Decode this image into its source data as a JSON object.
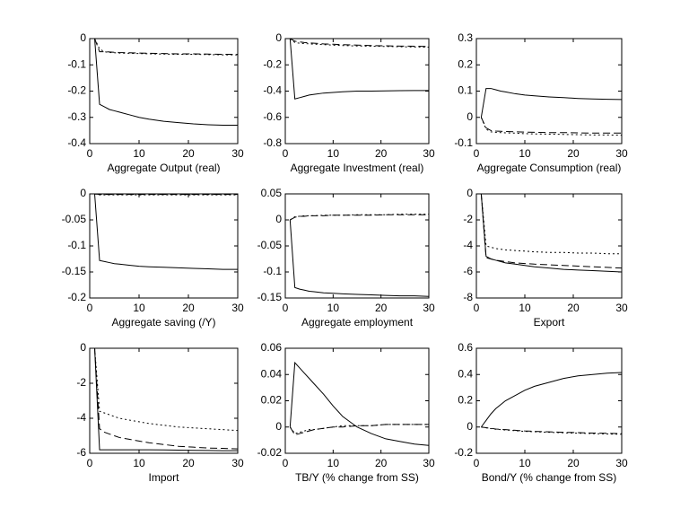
{
  "chart_data": [
    {
      "type": "line",
      "xlabel": "Aggregate Output (real)",
      "x": [
        1,
        2,
        3,
        4,
        5,
        6,
        8,
        10,
        12,
        15,
        18,
        21,
        24,
        27,
        30
      ],
      "xlim": [
        0,
        30
      ],
      "xticks": [
        0,
        10,
        20,
        30
      ],
      "ylim": [
        -0.4,
        0
      ],
      "yticks": [
        -0.4,
        -0.3,
        -0.2,
        -0.1,
        0
      ],
      "series": [
        {
          "color": "#000000",
          "dash": "solid",
          "values": [
            0,
            -0.25,
            -0.26,
            -0.27,
            -0.275,
            -0.28,
            -0.29,
            -0.3,
            -0.307,
            -0.315,
            -0.32,
            -0.325,
            -0.328,
            -0.33,
            -0.33
          ]
        },
        {
          "color": "#000000",
          "dash": "dashed",
          "values": [
            0,
            -0.05,
            -0.05,
            -0.051,
            -0.052,
            -0.053,
            -0.054,
            -0.055,
            -0.056,
            -0.057,
            -0.058,
            -0.058,
            -0.059,
            -0.06,
            -0.06
          ]
        },
        {
          "color": "#000000",
          "dash": "dotted",
          "values": [
            0,
            -0.04,
            -0.05,
            -0.053,
            -0.054,
            -0.055,
            -0.056,
            -0.057,
            -0.058,
            -0.059,
            -0.06,
            -0.06,
            -0.061,
            -0.062,
            -0.062
          ]
        }
      ]
    },
    {
      "type": "line",
      "xlabel": "Aggregate Investment (real)",
      "x": [
        1,
        2,
        3,
        4,
        5,
        6,
        8,
        10,
        12,
        15,
        18,
        21,
        24,
        27,
        30
      ],
      "xlim": [
        0,
        30
      ],
      "xticks": [
        0,
        10,
        20,
        30
      ],
      "ylim": [
        -0.8,
        0
      ],
      "yticks": [
        -0.8,
        -0.6,
        -0.4,
        -0.2,
        0
      ],
      "series": [
        {
          "color": "#000000",
          "dash": "solid",
          "values": [
            0,
            -0.46,
            -0.45,
            -0.44,
            -0.43,
            -0.425,
            -0.415,
            -0.41,
            -0.405,
            -0.4,
            -0.4,
            -0.398,
            -0.397,
            -0.396,
            -0.396
          ]
        },
        {
          "color": "#000000",
          "dash": "dashed",
          "values": [
            0,
            -0.02,
            -0.025,
            -0.03,
            -0.032,
            -0.035,
            -0.04,
            -0.043,
            -0.046,
            -0.05,
            -0.053,
            -0.055,
            -0.057,
            -0.058,
            -0.06
          ]
        },
        {
          "color": "#000000",
          "dash": "dotted",
          "values": [
            0,
            -0.03,
            -0.035,
            -0.038,
            -0.04,
            -0.042,
            -0.046,
            -0.05,
            -0.053,
            -0.056,
            -0.058,
            -0.06,
            -0.062,
            -0.064,
            -0.065
          ]
        }
      ]
    },
    {
      "type": "line",
      "xlabel": "Aggregate Consumption (real)",
      "x": [
        1,
        2,
        3,
        4,
        5,
        6,
        8,
        10,
        12,
        15,
        18,
        21,
        24,
        27,
        30
      ],
      "xlim": [
        0,
        30
      ],
      "xticks": [
        0,
        10,
        20,
        30
      ],
      "ylim": [
        -0.1,
        0.3
      ],
      "yticks": [
        -0.1,
        0,
        0.1,
        0.2,
        0.3
      ],
      "series": [
        {
          "color": "#000000",
          "dash": "solid",
          "values": [
            0,
            0.11,
            0.11,
            0.105,
            0.1,
            0.097,
            0.09,
            0.085,
            0.082,
            0.078,
            0.075,
            0.072,
            0.07,
            0.069,
            0.068
          ]
        },
        {
          "color": "#000000",
          "dash": "dashed",
          "values": [
            0,
            -0.04,
            -0.05,
            -0.052,
            -0.053,
            -0.054,
            -0.055,
            -0.056,
            -0.057,
            -0.058,
            -0.058,
            -0.059,
            -0.06,
            -0.06,
            -0.06
          ]
        },
        {
          "color": "#000000",
          "dash": "dotted",
          "values": [
            0,
            -0.045,
            -0.055,
            -0.057,
            -0.058,
            -0.059,
            -0.06,
            -0.062,
            -0.063,
            -0.064,
            -0.065,
            -0.066,
            -0.067,
            -0.067,
            -0.068
          ]
        }
      ]
    },
    {
      "type": "line",
      "xlabel": "Aggregate saving (/Y)",
      "x": [
        1,
        2,
        3,
        4,
        5,
        6,
        8,
        10,
        12,
        15,
        18,
        21,
        24,
        27,
        30
      ],
      "xlim": [
        0,
        30
      ],
      "xticks": [
        0,
        10,
        20,
        30
      ],
      "ylim": [
        -0.2,
        0
      ],
      "yticks": [
        -0.2,
        -0.15,
        -0.1,
        -0.05,
        0
      ],
      "series": [
        {
          "color": "#000000",
          "dash": "solid",
          "values": [
            0,
            -0.128,
            -0.13,
            -0.132,
            -0.134,
            -0.135,
            -0.137,
            -0.139,
            -0.14,
            -0.141,
            -0.142,
            -0.143,
            -0.144,
            -0.145,
            -0.145
          ]
        },
        {
          "color": "#000000",
          "dash": "dashed",
          "values": [
            0,
            -0.001,
            -0.001,
            -0.001,
            -0.001,
            -0.001,
            -0.001,
            -0.001,
            -0.001,
            -0.001,
            -0.001,
            -0.001,
            -0.001,
            -0.001,
            -0.001
          ]
        },
        {
          "color": "#000000",
          "dash": "dotted",
          "values": [
            0,
            -0.002,
            -0.002,
            -0.002,
            -0.002,
            -0.002,
            -0.002,
            -0.002,
            -0.002,
            -0.002,
            -0.002,
            -0.002,
            -0.002,
            -0.002,
            -0.002
          ]
        }
      ]
    },
    {
      "type": "line",
      "xlabel": "Aggregate employment",
      "x": [
        1,
        2,
        3,
        4,
        5,
        6,
        8,
        10,
        12,
        15,
        18,
        21,
        24,
        27,
        30
      ],
      "xlim": [
        0,
        30
      ],
      "xticks": [
        0,
        10,
        20,
        30
      ],
      "ylim": [
        -0.15,
        0.05
      ],
      "yticks": [
        -0.15,
        -0.1,
        -0.05,
        0,
        0.05
      ],
      "series": [
        {
          "color": "#000000",
          "dash": "solid",
          "values": [
            0,
            -0.13,
            -0.133,
            -0.135,
            -0.137,
            -0.138,
            -0.14,
            -0.141,
            -0.142,
            -0.143,
            -0.144,
            -0.145,
            -0.146,
            -0.146,
            -0.147
          ]
        },
        {
          "color": "#000000",
          "dash": "dashed",
          "values": [
            0,
            0.005,
            0.007,
            0.007,
            0.008,
            0.008,
            0.008,
            0.009,
            0.009,
            0.009,
            0.009,
            0.01,
            0.01,
            0.01,
            0.01
          ]
        },
        {
          "color": "#000000",
          "dash": "dotted",
          "values": [
            0,
            0.006,
            0.007,
            0.008,
            0.008,
            0.008,
            0.009,
            0.009,
            0.009,
            0.01,
            0.01,
            0.01,
            0.011,
            0.011,
            0.011
          ]
        }
      ]
    },
    {
      "type": "line",
      "xlabel": "Export",
      "x": [
        1,
        2,
        3,
        4,
        5,
        6,
        8,
        10,
        12,
        15,
        18,
        21,
        24,
        27,
        30
      ],
      "xlim": [
        0,
        30
      ],
      "xticks": [
        0,
        10,
        20,
        30
      ],
      "ylim": [
        -8,
        0
      ],
      "yticks": [
        -8,
        -6,
        -4,
        -2,
        0
      ],
      "series": [
        {
          "color": "#000000",
          "dash": "solid",
          "values": [
            0,
            -4.8,
            -5,
            -5.1,
            -5.2,
            -5.3,
            -5.4,
            -5.5,
            -5.6,
            -5.7,
            -5.8,
            -5.85,
            -5.9,
            -5.95,
            -6
          ]
        },
        {
          "color": "#000000",
          "dash": "dashed",
          "values": [
            0,
            -4.9,
            -5,
            -5.1,
            -5.15,
            -5.2,
            -5.3,
            -5.35,
            -5.4,
            -5.45,
            -5.5,
            -5.55,
            -5.6,
            -5.65,
            -5.7
          ]
        },
        {
          "color": "#000000",
          "dash": "dotted",
          "values": [
            0,
            -4,
            -4.1,
            -4.2,
            -4.25,
            -4.3,
            -4.35,
            -4.4,
            -4.45,
            -4.5,
            -4.5,
            -4.55,
            -4.55,
            -4.6,
            -4.6
          ]
        }
      ]
    },
    {
      "type": "line",
      "xlabel": "Import",
      "x": [
        1,
        2,
        3,
        4,
        5,
        6,
        8,
        10,
        12,
        15,
        18,
        21,
        24,
        27,
        30
      ],
      "xlim": [
        0,
        30
      ],
      "xticks": [
        0,
        10,
        20,
        30
      ],
      "ylim": [
        -6,
        0
      ],
      "yticks": [
        -6,
        -4,
        -2,
        0
      ],
      "series": [
        {
          "color": "#000000",
          "dash": "solid",
          "values": [
            0,
            -5.8,
            -5.8,
            -5.8,
            -5.8,
            -5.8,
            -5.8,
            -5.8,
            -5.8,
            -5.81,
            -5.82,
            -5.83,
            -5.84,
            -5.85,
            -5.85
          ]
        },
        {
          "color": "#000000",
          "dash": "dashed",
          "values": [
            0,
            -4.6,
            -4.8,
            -4.9,
            -5,
            -5.1,
            -5.2,
            -5.3,
            -5.4,
            -5.5,
            -5.6,
            -5.65,
            -5.7,
            -5.72,
            -5.75
          ]
        },
        {
          "color": "#000000",
          "dash": "dotted",
          "values": [
            0,
            -3.6,
            -3.7,
            -3.8,
            -3.9,
            -4,
            -4.1,
            -4.2,
            -4.3,
            -4.4,
            -4.5,
            -4.55,
            -4.6,
            -4.65,
            -4.7
          ]
        }
      ]
    },
    {
      "type": "line",
      "xlabel": "TB/Y (% change from SS)",
      "x": [
        1,
        2,
        3,
        4,
        5,
        6,
        8,
        10,
        12,
        15,
        18,
        21,
        24,
        27,
        30
      ],
      "xlim": [
        0,
        30
      ],
      "xticks": [
        0,
        10,
        20,
        30
      ],
      "ylim": [
        -0.02,
        0.06
      ],
      "yticks": [
        -0.02,
        0,
        0.02,
        0.04,
        0.06
      ],
      "series": [
        {
          "color": "#000000",
          "dash": "solid",
          "values": [
            0,
            0.049,
            0.045,
            0.041,
            0.037,
            0.033,
            0.025,
            0.016,
            0.008,
            0.0,
            -0.005,
            -0.009,
            -0.011,
            -0.013,
            -0.014
          ]
        },
        {
          "color": "#000000",
          "dash": "dashed",
          "values": [
            0,
            -0.006,
            -0.005,
            -0.004,
            -0.003,
            -0.002,
            -0.001,
            0,
            0,
            0.001,
            0.001,
            0.002,
            0.002,
            0.002,
            0.002
          ]
        },
        {
          "color": "#000000",
          "dash": "dotted",
          "values": [
            0,
            -0.005,
            -0.004,
            -0.003,
            -0.002,
            -0.002,
            -0.001,
            0,
            0.001,
            0.001,
            0.001,
            0.002,
            0.002,
            0.002,
            0.002
          ]
        }
      ]
    },
    {
      "type": "line",
      "xlabel": "Bond/Y (% change from SS)",
      "x": [
        1,
        2,
        3,
        4,
        5,
        6,
        8,
        10,
        12,
        15,
        18,
        21,
        24,
        27,
        30
      ],
      "xlim": [
        0,
        30
      ],
      "xticks": [
        0,
        10,
        20,
        30
      ],
      "ylim": [
        -0.2,
        0.6
      ],
      "yticks": [
        -0.2,
        0,
        0.2,
        0.4,
        0.6
      ],
      "series": [
        {
          "color": "#000000",
          "dash": "solid",
          "values": [
            0,
            0.05,
            0.1,
            0.14,
            0.17,
            0.2,
            0.24,
            0.28,
            0.31,
            0.34,
            0.37,
            0.39,
            0.4,
            0.41,
            0.415
          ]
        },
        {
          "color": "#000000",
          "dash": "dashed",
          "values": [
            0,
            -0.005,
            -0.01,
            -0.015,
            -0.018,
            -0.02,
            -0.025,
            -0.03,
            -0.033,
            -0.037,
            -0.04,
            -0.043,
            -0.046,
            -0.048,
            -0.05
          ]
        },
        {
          "color": "#000000",
          "dash": "dotted",
          "values": [
            0,
            -0.006,
            -0.012,
            -0.017,
            -0.02,
            -0.023,
            -0.028,
            -0.033,
            -0.036,
            -0.04,
            -0.044,
            -0.047,
            -0.05,
            -0.053,
            -0.055
          ]
        }
      ]
    }
  ]
}
